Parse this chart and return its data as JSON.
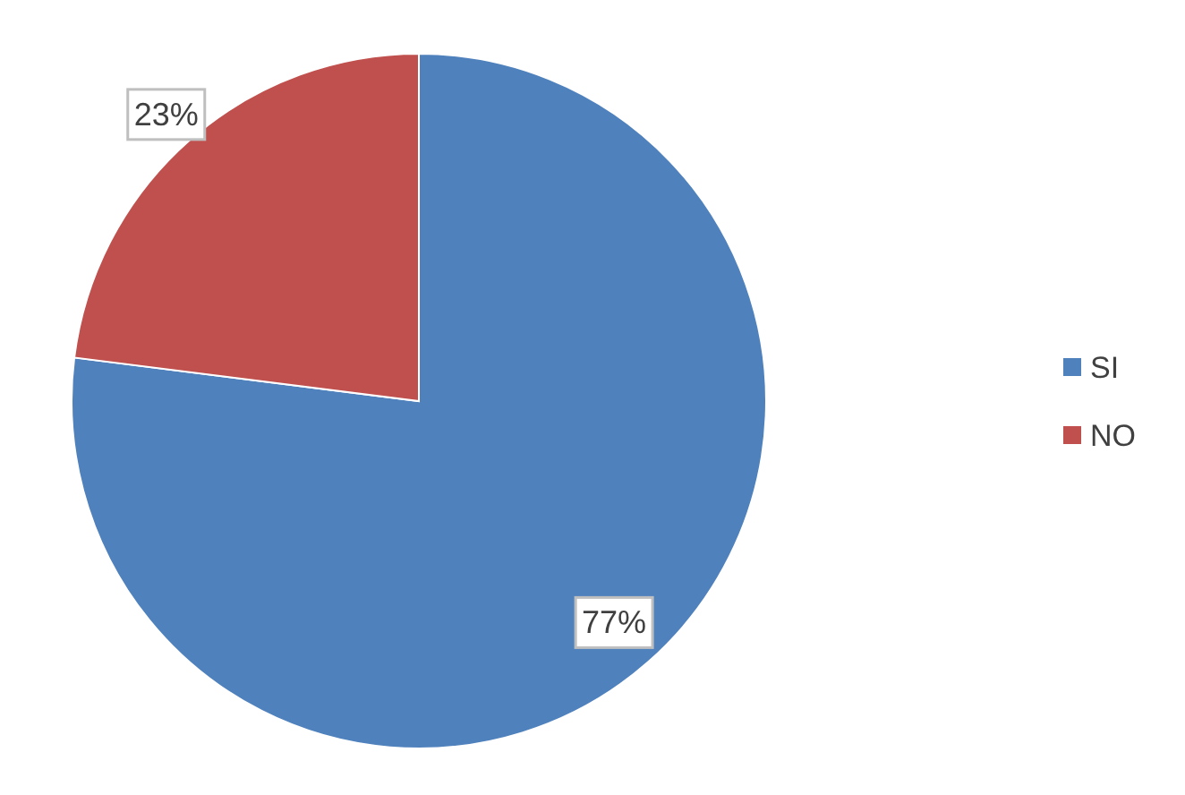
{
  "chart_data": {
    "type": "pie",
    "categories": [
      "SI",
      "NO"
    ],
    "values": [
      77,
      23
    ],
    "colors": [
      "#4f81bd",
      "#c0504d"
    ],
    "value_labels": [
      "77%",
      "23%"
    ],
    "legend": "right"
  }
}
